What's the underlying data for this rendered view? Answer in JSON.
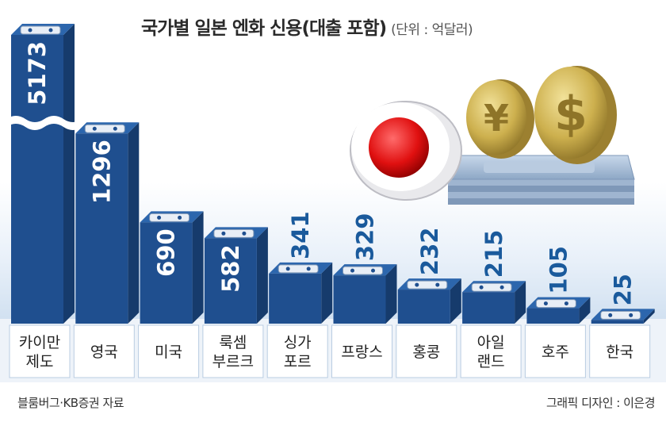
{
  "title": "국가별 일본 엔화 신용(대출 포함)",
  "unit": "(단위 : 억달러)",
  "source": "블룸버그·KB증권 자료",
  "credit": "그래픽 디자인 : 이은경",
  "colors": {
    "bar_front": "#1f4f8f",
    "bar_side": "#163b6c",
    "bar_top": "#2c66ad",
    "value_dark": "#1a5a9c",
    "value_light": "#ffffff",
    "label_box": "#ffffff",
    "band": "#d9e6f4"
  },
  "chart_data": {
    "type": "bar",
    "title": "국가별 일본 엔화 신용(대출 포함)",
    "unit": "억달러",
    "categories": [
      "카이만 제도",
      "영국",
      "미국",
      "룩셈 부르크",
      "싱가 포르",
      "프랑스",
      "홍콩",
      "아일 랜드",
      "호주",
      "한국"
    ],
    "category_lines": [
      [
        "카이만",
        "제도"
      ],
      [
        "영국"
      ],
      [
        "미국"
      ],
      [
        "룩셈",
        "부르크"
      ],
      [
        "싱가",
        "포르"
      ],
      [
        "프랑스"
      ],
      [
        "홍콩"
      ],
      [
        "아일",
        "랜드"
      ],
      [
        "호주"
      ],
      [
        "한국"
      ]
    ],
    "values": [
      5173,
      1296,
      690,
      582,
      341,
      329,
      232,
      215,
      105,
      25
    ],
    "value_labels": [
      "5173",
      "1296",
      "690",
      "582",
      "341",
      "329",
      "232",
      "215",
      "105",
      "25"
    ],
    "broken_axis_bar": "카이만 제도"
  }
}
